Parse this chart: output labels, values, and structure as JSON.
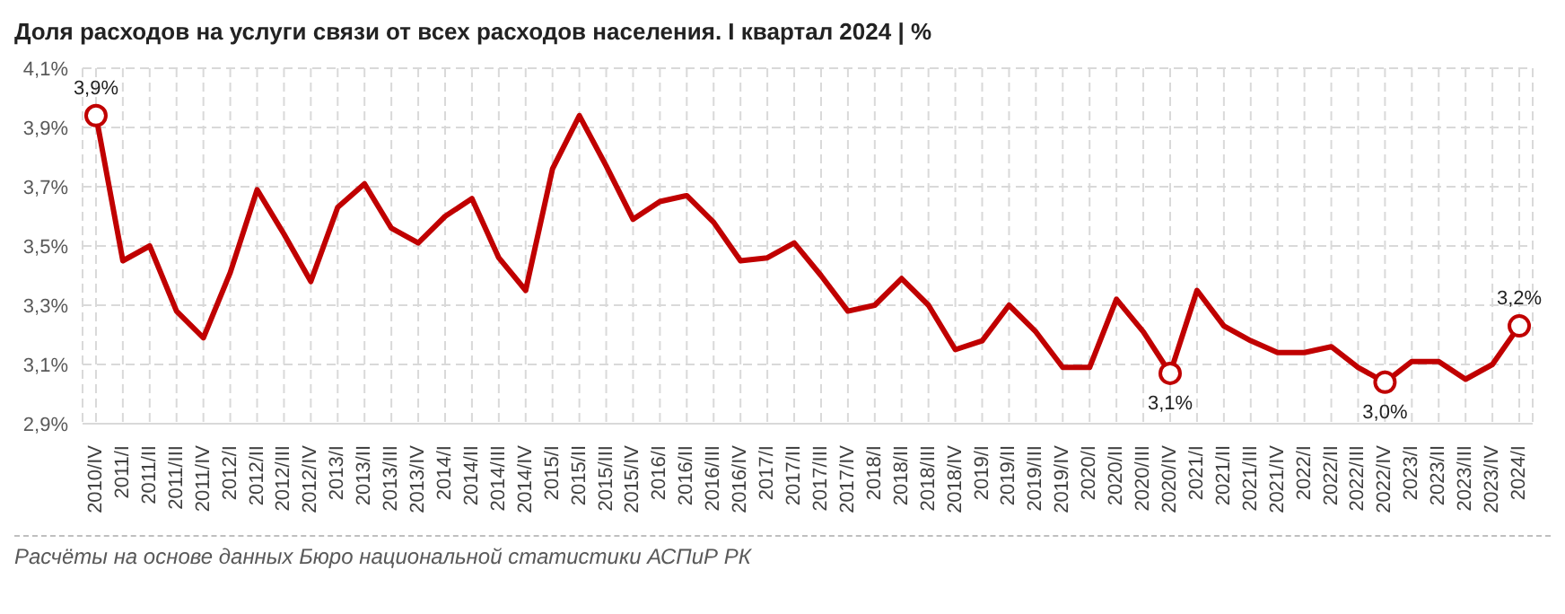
{
  "chart_data": {
    "type": "line",
    "title": "Доля расходов на услуги связи от всех расходов населения. I квартал 2024 | %",
    "annotations": [
      "Расчёты на основе данных Бюро национальной статистики АСПиР РК"
    ],
    "categories": [
      "2010/IV",
      "2011/I",
      "2011/II",
      "2011/III",
      "2011/IV",
      "2012/I",
      "2012/II",
      "2012/III",
      "2012/IV",
      "2013/I",
      "2013/II",
      "2013/III",
      "2013/IV",
      "2014/I",
      "2014/II",
      "2014/III",
      "2014/IV",
      "2015/I",
      "2015/II",
      "2015/III",
      "2015/IV",
      "2016/I",
      "2016/II",
      "2016/III",
      "2016/IV",
      "2017/I",
      "2017/II",
      "2017/III",
      "2017/IV",
      "2018/I",
      "2018/II",
      "2018/III",
      "2018/IV",
      "2019/I",
      "2019/II",
      "2019/III",
      "2019/IV",
      "2020/I",
      "2020/II",
      "2020/III",
      "2020/IV",
      "2021/I",
      "2021/II",
      "2021/III",
      "2021/IV",
      "2022/I",
      "2022/II",
      "2022/III",
      "2022/IV",
      "2023/I",
      "2023/II",
      "2023/III",
      "2023/IV",
      "2024/I"
    ],
    "series": [
      {
        "color": "#c00000",
        "values": [
          3.94,
          3.45,
          3.5,
          3.28,
          3.19,
          3.41,
          3.69,
          3.54,
          3.38,
          3.63,
          3.71,
          3.56,
          3.51,
          3.6,
          3.66,
          3.46,
          3.35,
          3.76,
          3.94,
          3.77,
          3.59,
          3.65,
          3.67,
          3.58,
          3.45,
          3.46,
          3.51,
          3.4,
          3.28,
          3.3,
          3.39,
          3.3,
          3.15,
          3.18,
          3.3,
          3.21,
          3.09,
          3.09,
          3.32,
          3.21,
          3.07,
          3.35,
          3.23,
          3.18,
          3.14,
          3.14,
          3.16,
          3.09,
          3.04,
          3.11,
          3.11,
          3.05,
          3.1,
          3.23
        ],
        "value_labels": [
          "3,9%",
          null,
          null,
          null,
          null,
          null,
          null,
          null,
          null,
          null,
          null,
          null,
          null,
          null,
          null,
          null,
          null,
          null,
          null,
          null,
          null,
          null,
          null,
          null,
          null,
          null,
          null,
          null,
          null,
          null,
          null,
          null,
          null,
          null,
          null,
          null,
          null,
          null,
          null,
          null,
          "3,1%",
          null,
          null,
          null,
          null,
          null,
          null,
          null,
          "3,0%",
          null,
          null,
          null,
          null,
          "3,2%"
        ]
      }
    ],
    "ylim": [
      2.9,
      4.1
    ],
    "yticks": [
      {
        "value": 2.9,
        "label": "2,9%"
      },
      {
        "value": 3.1,
        "label": "3,1%"
      },
      {
        "value": 3.3,
        "label": "3,3%"
      },
      {
        "value": 3.5,
        "label": "3,5%"
      },
      {
        "value": 3.7,
        "label": "3,7%"
      },
      {
        "value": 3.9,
        "label": "3,9%"
      },
      {
        "value": 4.1,
        "label": "4,1%"
      }
    ],
    "grid": true,
    "line_style": "solid",
    "legend": false
  }
}
